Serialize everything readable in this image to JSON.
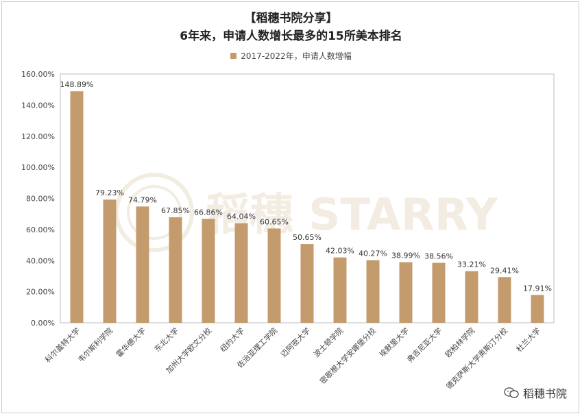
{
  "chart_data": {
    "type": "bar",
    "title": "【稻穗书院分享】",
    "subtitle": "6年来，申请人数增长最多的15所美本排名",
    "series": [
      {
        "name": "2017-2022年，申请人数增幅",
        "color": "#c49b6d",
        "values": [
          148.89,
          79.23,
          74.79,
          67.85,
          66.86,
          64.04,
          60.65,
          50.65,
          42.03,
          40.27,
          38.99,
          38.56,
          33.21,
          29.41,
          17.91
        ]
      }
    ],
    "categories": [
      "科尔盖特大学",
      "韦尔斯利学院",
      "霍华德大学",
      "东北大学",
      "加州大学欧文分校",
      "纽约大学",
      "佐治亚理工学院",
      "迈阿密大学",
      "波士顿学院",
      "密歇根大学安娜堡分校",
      "埃默里大学",
      "弗吉尼亚大学",
      "欧柏林学院",
      "德克萨斯大学奥斯汀分校",
      "杜兰大学"
    ],
    "data_labels": [
      "148.89%",
      "79.23%",
      "74.79%",
      "67.85%",
      "66.86%",
      "64.04%",
      "60.65%",
      "50.65%",
      "42.03%",
      "40.27%",
      "38.99%",
      "38.56%",
      "33.21%",
      "29.41%",
      "17.91%"
    ],
    "yticks": [
      "0.00%",
      "20.00%",
      "40.00%",
      "60.00%",
      "80.00%",
      "100.00%",
      "120.00%",
      "140.00%",
      "160.00%"
    ],
    "ylim": [
      0,
      160
    ],
    "grid": false,
    "legend": "top-center"
  },
  "watermark": "稻穗 STARRY",
  "brand": {
    "text": "稻穗书院",
    "icon": "wechat-icon"
  }
}
